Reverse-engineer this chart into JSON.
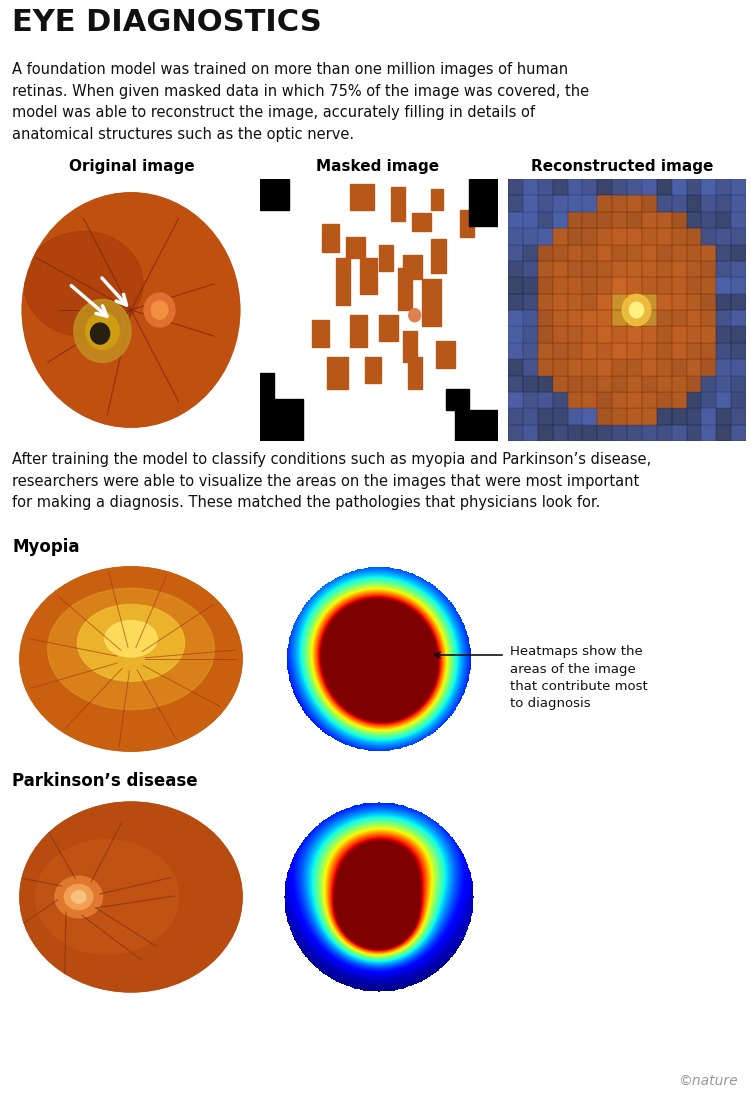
{
  "title": "EYE DIAGNOSTICS",
  "subtitle": "A foundation model was trained on more than one million images of human\nretinas. When given masked data in which 75% of the image was covered, the\nmodel was able to reconstruct the image, accurately filling in details of\nanatomical structures such as the optic nerve.",
  "section2_text": "After training the model to classify conditions such as myopia and Parkinson’s disease,\nresearchers were able to visualize the areas on the images that were most important\nfor making a diagnosis. These matched the pathologies that physicians look for.",
  "col_labels": [
    "Original image",
    "Masked image",
    "Reconstructed image"
  ],
  "myopia_label": "Myopia",
  "parkinsons_label": "Parkinson’s disease",
  "annotation_text": "Heatmaps show the\nareas of the image\nthat contribute most\nto diagnosis",
  "nature_credit": "©nature",
  "bg_color": "#ffffff",
  "fig_w": 7.51,
  "fig_h": 10.95,
  "dpi": 100
}
